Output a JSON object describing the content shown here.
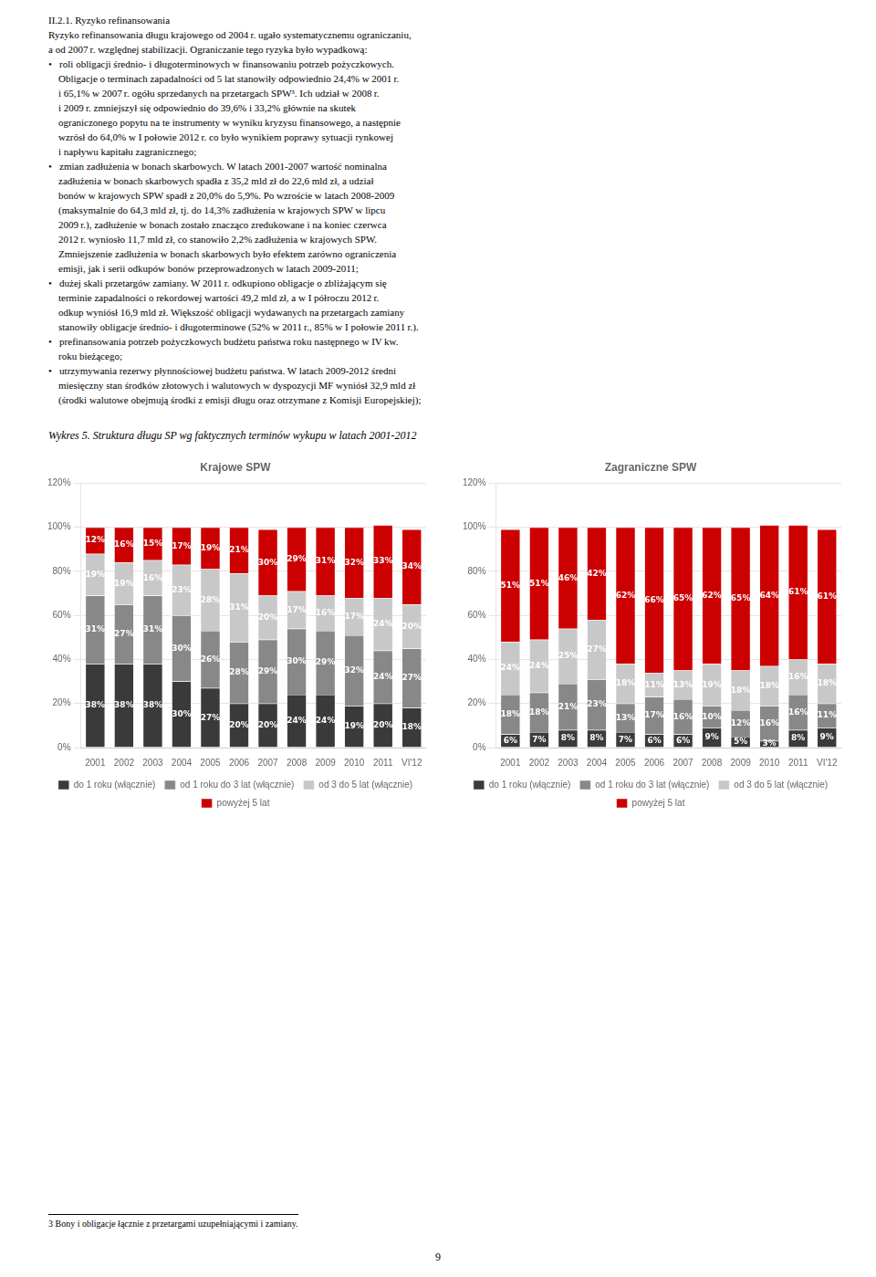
{
  "title": "Wykres 5. Struktura długu SP wg faktycznych terminów wykupu w latach 2001-2012",
  "annotations": [
    "II.2.1. Ryzyko refinansowania\nRyzyko refinansowania długu krajowego od 2004 r. ugało systematycznemu ograniczaniu,\na od 2007 r. względnej stabilizacji. Ograniczanie tego ryzyka było wypadkową:\n•   roli obligacji średnio- i długoterminowych w finansowaniu potrzeb pożyczkowych.\n    Obligacje o terminach zapadalności od 5 lat stanowiły odpowiednio 24,4% w 2001 r.\n    i 65,1% w 2007 r. ogółu sprzedanych na przetargach SPW³. Ich udział w 2008 r.\n    i 2009 r. zmniejszył się odpowiednio do 39,6% i 33,2% głównie na skutek\n    ograniczonego popytu na te instrumenty w wyniku kryzysu finansowego, a następnie\n    wzrósł do 64,0% w I połowie 2012 r. co było wynikiem poprawy sytuacji rynkowej\n    i napływu kapitału zagranicznego;\n•   zmian zadłużenia w bonach skarbowych. W latach 2001-2007 wartość nominalna\n    zadłużenia w bonach skarbowych spadła z 35,2 mld zł do 22,6 mld zł, a udział\n    bonów w krajowych SPW spadł z 20,0% do 5,9%. Po wzroście w latach 2008-2009\n    (maksymalnie do 64,3 mld zł, tj. do 14,3% zadłużenia w krajowych SPW w lipcu\n    2009 r.), zadłużenie w bonach zostało znacząco zredukowane i na koniec czerwca\n    2012 r. wyniosło 11,7 mld zł, co stanowiło 2,2% zadłużenia w krajowych SPW.\n    Zmniejszenie zadłużenia w bonach skarbowych było efektem zarówno ograniczenia\n    emisji, jak i serii odkupów bonów przeprowadzonych w latach 2009-2011;\n•   dużej skali przetargów zamiany. W 2011 r. odkupiono obligacje o zbliżającym się\n    terminie zapadalności o rekordowej wartości 49,2 mld zł, a w I półroczu 2012 r.\n    odkup wyniósł 16,9 mld zł. Większość obligacji wydawanych na przetargach zamiany\n    stanowiły obligacje średnio- i długoterminowe (52% w 2011 r., 85% w I połowie 2011 r.).\n•   prefinansowania potrzeb pożyczkowych budżetu państwa roku następnego w IV kw.\n    roku bieżącego;\n•   utrzymywania rezerwy płynnościowej budżetu państwa. W latach 2009-2012 średni\n    miesięczny stan środków złotowych i walutowych w dyspozycji MF wyniósł 32,9 mld zł\n    (środki walutowe obejmują środki z emisji długu oraz otrzymane z Komisji Europejskiej);",
    "3 Bony i obligacje łącznie z przetargami uzupełniającymi i zamiany.",
    "9"
  ],
  "chart_data": [
    {
      "type": "bar",
      "title": "Krajowe SPW",
      "stacked": true,
      "data_labels": true,
      "grid": true,
      "legend": "bottom",
      "categories": [
        "2001",
        "2002",
        "2003",
        "2004",
        "2005",
        "2006",
        "2007",
        "2008",
        "2009",
        "2010",
        "2011",
        "VI'12"
      ],
      "ylim": [
        0,
        120
      ],
      "yticks": [
        {
          "value": 0,
          "label": "0%"
        },
        {
          "value": 20,
          "label": "20%"
        },
        {
          "value": 40,
          "label": "40%"
        },
        {
          "value": 60,
          "label": "60%"
        },
        {
          "value": 80,
          "label": "80%"
        },
        {
          "value": 100,
          "label": "100%"
        },
        {
          "value": 120,
          "label": "120%"
        }
      ],
      "series": [
        {
          "name": "do 1 roku (włącznie)",
          "color": "#3a3a3a",
          "values": [
            38,
            38,
            38,
            30,
            27,
            20,
            20,
            24,
            24,
            19,
            20,
            18
          ],
          "value_labels": [
            "38%",
            "38%",
            "38%",
            "30%",
            "27%",
            "20%",
            "20%",
            "24%",
            "24%",
            "19%",
            "20%",
            "18%"
          ]
        },
        {
          "name": "od 1 roku do 3 lat (włącznie)",
          "color": "#888888",
          "values": [
            31,
            27,
            31,
            30,
            26,
            28,
            29,
            30,
            29,
            32,
            24,
            27
          ],
          "value_labels": [
            "31%",
            "27%",
            "31%",
            "30%",
            "26%",
            "28%",
            "29%",
            "30%",
            "29%",
            "32%",
            "24%",
            "27%"
          ]
        },
        {
          "name": "od 3 do 5 lat (włącznie)",
          "color": "#c8c8c8",
          "values": [
            19,
            19,
            16,
            23,
            28,
            31,
            20,
            17,
            16,
            17,
            24,
            20
          ],
          "value_labels": [
            "19%",
            "19%",
            "16%",
            "23%",
            "28%",
            "31%",
            "20%",
            "17%",
            "16%",
            "17%",
            "24%",
            "20%"
          ]
        },
        {
          "name": "powyżej 5 lat",
          "color": "#cc0000",
          "values": [
            12,
            16,
            15,
            17,
            19,
            21,
            30,
            29,
            31,
            32,
            33,
            34
          ],
          "value_labels": [
            "12%",
            "16%",
            "15%",
            "17%",
            "19%",
            "21%",
            "30%",
            "29%",
            "31%",
            "32%",
            "33%",
            "34%"
          ]
        }
      ]
    },
    {
      "type": "bar",
      "title": "Zagraniczne SPW",
      "stacked": true,
      "data_labels": true,
      "grid": true,
      "legend": "bottom",
      "categories": [
        "2001",
        "2002",
        "2003",
        "2004",
        "2005",
        "2006",
        "2007",
        "2008",
        "2009",
        "2010",
        "2011",
        "VI'12"
      ],
      "ylim": [
        0,
        120
      ],
      "yticks": [
        {
          "value": 0,
          "label": "0%"
        },
        {
          "value": 20,
          "label": "20%"
        },
        {
          "value": 40,
          "label": "40%"
        },
        {
          "value": 60,
          "label": "60%"
        },
        {
          "value": 80,
          "label": "80%"
        },
        {
          "value": 100,
          "label": "100%"
        },
        {
          "value": 120,
          "label": "120%"
        }
      ],
      "series": [
        {
          "name": "do 1 roku (włącznie)",
          "color": "#3a3a3a",
          "values": [
            6,
            7,
            8,
            8,
            7,
            6,
            6,
            9,
            5,
            3,
            8,
            9
          ],
          "value_labels": [
            "6%",
            "7%",
            "8%",
            "8%",
            "7%",
            "6%",
            "6%",
            "9%",
            "5%",
            "3%",
            "8%",
            "9%"
          ]
        },
        {
          "name": "od 1 roku do 3 lat (włącznie)",
          "color": "#888888",
          "values": [
            18,
            18,
            21,
            23,
            13,
            17,
            16,
            10,
            12,
            16,
            16,
            11
          ],
          "value_labels": [
            "18%",
            "18%",
            "21%",
            "23%",
            "13%",
            "17%",
            "16%",
            "10%",
            "12%",
            "16%",
            "16%",
            "11%"
          ]
        },
        {
          "name": "od 3 do 5 lat (włącznie)",
          "color": "#c8c8c8",
          "values": [
            24,
            24,
            25,
            27,
            18,
            11,
            13,
            19,
            18,
            18,
            16,
            18
          ],
          "value_labels": [
            "24%",
            "24%",
            "25%",
            "27%",
            "18%",
            "11%",
            "13%",
            "19%",
            "18%",
            "18%",
            "16%",
            "18%"
          ]
        },
        {
          "name": "powyżej 5 lat",
          "color": "#cc0000",
          "values": [
            51,
            51,
            46,
            42,
            62,
            66,
            65,
            62,
            65,
            64,
            61,
            61
          ],
          "value_labels": [
            "51%",
            "51%",
            "46%",
            "42%",
            "62%",
            "66%",
            "65%",
            "62%",
            "65%",
            "64%",
            "61%",
            "61%"
          ]
        }
      ]
    }
  ]
}
